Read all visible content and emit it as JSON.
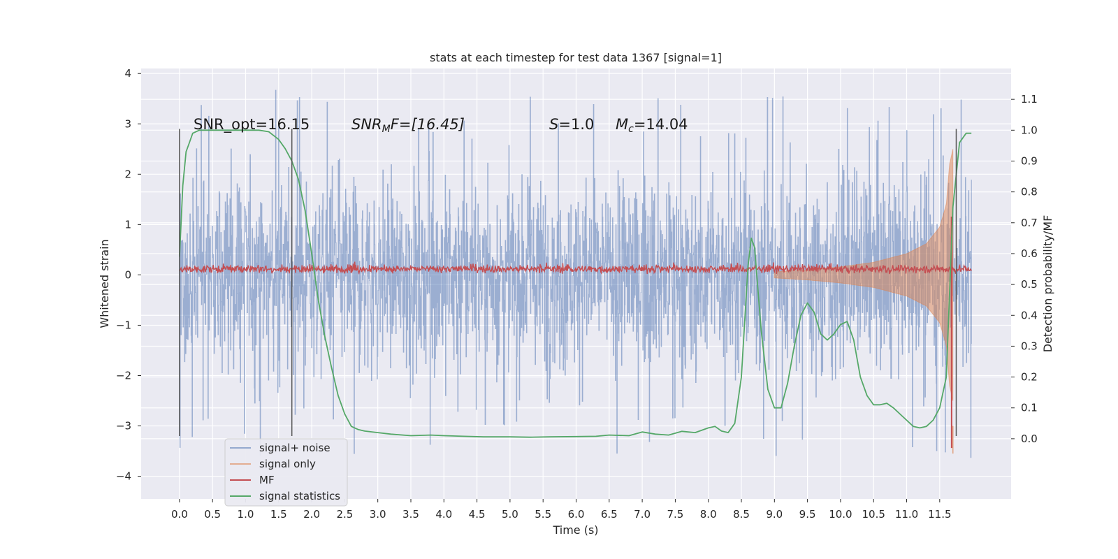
{
  "chart_data": {
    "type": "line",
    "title": "stats at each timestep for test data 1367 [signal=1]",
    "xlabel": "Time (s)",
    "ylabel_left": "Whitened strain",
    "ylabel_right": "Detection probability/MF",
    "xlim": [
      -0.58,
      12.58
    ],
    "ylim_left": [
      -4.45,
      4.1
    ],
    "ylim_right": [
      -0.195,
      1.2
    ],
    "x_ticks": [
      "0.0",
      "0.5",
      "1.0",
      "1.5",
      "2.0",
      "2.5",
      "3.0",
      "3.5",
      "4.0",
      "4.5",
      "5.0",
      "5.5",
      "6.0",
      "6.5",
      "7.0",
      "7.5",
      "8.0",
      "8.5",
      "9.0",
      "9.5",
      "10.0",
      "10.5",
      "11.0",
      "11.5"
    ],
    "y_ticks_left": [
      "4",
      "3",
      "2",
      "1",
      "0",
      "−1",
      "−2",
      "−3",
      "−4"
    ],
    "y_ticks_right": [
      "1.1",
      "1.0",
      "0.9",
      "0.8",
      "0.7",
      "0.6",
      "0.5",
      "0.4",
      "0.3",
      "0.2",
      "0.1",
      "0.0"
    ],
    "grid": true,
    "legend_position": "lower-left",
    "annotations": {
      "snr_opt": "SNR_opt=16.15",
      "snr_mf_pre": "SNR",
      "snr_mf_sub": "M",
      "snr_mf_post": "F=[16.45]",
      "s_italic": "S",
      "s_val": "=1.0",
      "mc_italic": "M",
      "mc_sub": "c",
      "mc_val": "=14.04"
    },
    "vertical_markers_x": [
      0.0,
      1.7,
      11.75
    ],
    "series": [
      {
        "name": "signal+ noise",
        "color": "#4c72b0",
        "description_values": {
          "x_range": [
            0.0,
            11.98
          ],
          "typical_amplitude": 1.6,
          "max": 3.72,
          "min": -4.1
        }
      },
      {
        "name": "signal only",
        "color": "#dd8452",
        "envelope_x": [
          9.0,
          9.5,
          10.0,
          10.5,
          11.0,
          11.3,
          11.5,
          11.6,
          11.65,
          11.7
        ],
        "envelope_amp": [
          0.06,
          0.1,
          0.16,
          0.25,
          0.42,
          0.62,
          0.95,
          1.4,
          2.2,
          2.5
        ]
      },
      {
        "name": "MF",
        "color": "#c44e52",
        "baseline": 0.55,
        "spike_x": 11.68,
        "spike_top": 0.72,
        "spike_bottom": -0.03
      },
      {
        "name": "signal statistics",
        "color": "#55a868",
        "x": [
          0.0,
          0.05,
          0.1,
          0.15,
          0.2,
          0.3,
          0.5,
          0.8,
          1.0,
          1.2,
          1.35,
          1.5,
          1.6,
          1.7,
          1.8,
          1.9,
          2.0,
          2.1,
          2.2,
          2.3,
          2.4,
          2.5,
          2.6,
          2.7,
          2.8,
          3.0,
          3.2,
          3.5,
          3.8,
          4.0,
          4.3,
          4.6,
          5.0,
          5.3,
          5.6,
          6.0,
          6.3,
          6.5,
          6.8,
          7.0,
          7.2,
          7.4,
          7.6,
          7.8,
          8.0,
          8.1,
          8.2,
          8.3,
          8.4,
          8.5,
          8.6,
          8.65,
          8.7,
          8.8,
          8.9,
          9.0,
          9.1,
          9.2,
          9.3,
          9.4,
          9.5,
          9.6,
          9.7,
          9.8,
          9.9,
          10.0,
          10.1,
          10.2,
          10.3,
          10.4,
          10.5,
          10.6,
          10.7,
          10.8,
          10.9,
          11.0,
          11.1,
          11.2,
          11.3,
          11.4,
          11.5,
          11.6,
          11.7,
          11.8,
          11.9,
          11.98
        ],
        "y": [
          0.59,
          0.82,
          0.93,
          0.96,
          0.99,
          1.0,
          1.0,
          1.0,
          1.0,
          1.0,
          0.995,
          0.97,
          0.94,
          0.9,
          0.84,
          0.74,
          0.6,
          0.45,
          0.33,
          0.23,
          0.14,
          0.08,
          0.04,
          0.03,
          0.025,
          0.02,
          0.015,
          0.01,
          0.012,
          0.01,
          0.008,
          0.006,
          0.006,
          0.005,
          0.006,
          0.007,
          0.008,
          0.012,
          0.01,
          0.022,
          0.015,
          0.012,
          0.024,
          0.02,
          0.035,
          0.04,
          0.025,
          0.02,
          0.05,
          0.2,
          0.56,
          0.65,
          0.62,
          0.35,
          0.16,
          0.1,
          0.1,
          0.18,
          0.3,
          0.4,
          0.44,
          0.41,
          0.34,
          0.32,
          0.34,
          0.37,
          0.38,
          0.32,
          0.2,
          0.14,
          0.11,
          0.11,
          0.115,
          0.1,
          0.08,
          0.06,
          0.04,
          0.035,
          0.04,
          0.06,
          0.1,
          0.2,
          0.75,
          0.96,
          0.99,
          0.99
        ]
      }
    ]
  }
}
